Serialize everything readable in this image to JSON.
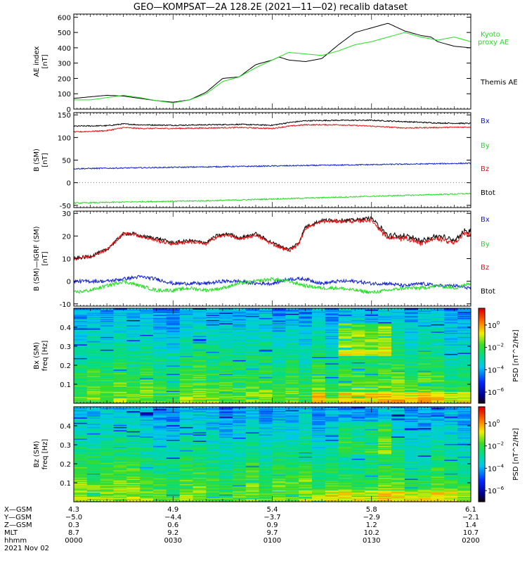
{
  "title": "GEO—KOMPSAT—2A 128.2E (2021—11—02) recalib dataset",
  "colors": {
    "black": "#000000",
    "green": "#22dd22",
    "red": "#e01010",
    "blue": "#1020cc"
  },
  "chart_data": [
    {
      "type": "line",
      "panel": "ae",
      "ylabel_lines": [
        "AE index",
        "[nT]"
      ],
      "ylim": [
        0,
        620
      ],
      "yticks": [
        0,
        100,
        200,
        300,
        400,
        500,
        600
      ],
      "xlim_minutes": [
        0,
        120
      ],
      "legend": [
        {
          "text": "Kyoto",
          "color": "green"
        },
        {
          "text": "proxy AE",
          "color": "green"
        },
        {
          "text": "Themis AE",
          "color": "black"
        }
      ],
      "series": [
        {
          "name": "Themis AE",
          "color": "black",
          "x": [
            0,
            5,
            10,
            15,
            20,
            25,
            30,
            35,
            40,
            45,
            50,
            55,
            60,
            62,
            65,
            70,
            75,
            80,
            85,
            90,
            95,
            100,
            105,
            108,
            110,
            115,
            120
          ],
          "y": [
            70,
            80,
            90,
            85,
            70,
            55,
            45,
            60,
            110,
            200,
            210,
            290,
            320,
            340,
            320,
            310,
            330,
            420,
            500,
            530,
            560,
            510,
            480,
            470,
            440,
            410,
            400
          ]
        },
        {
          "name": "Kyoto proxy AE",
          "color": "green",
          "x": [
            0,
            5,
            10,
            15,
            20,
            25,
            30,
            35,
            40,
            45,
            50,
            55,
            60,
            65,
            70,
            75,
            80,
            85,
            90,
            95,
            100,
            105,
            110,
            115,
            120
          ],
          "y": [
            60,
            60,
            75,
            90,
            75,
            55,
            40,
            60,
            100,
            180,
            210,
            270,
            320,
            370,
            360,
            350,
            380,
            420,
            440,
            470,
            500,
            470,
            450,
            470,
            440
          ]
        }
      ]
    },
    {
      "type": "line",
      "panel": "b",
      "ylabel_lines": [
        "B (SM)",
        "[nT]"
      ],
      "ylim": [
        -55,
        155
      ],
      "yticks": [
        -50,
        0,
        50,
        100,
        150
      ],
      "legend": [
        {
          "text": "Bx",
          "color": "blue"
        },
        {
          "text": "By",
          "color": "green"
        },
        {
          "text": "Bz",
          "color": "red"
        },
        {
          "text": "Btot",
          "color": "black"
        }
      ],
      "series": [
        {
          "name": "Btot",
          "color": "black",
          "x": [
            0,
            10,
            15,
            20,
            30,
            40,
            50,
            60,
            65,
            70,
            80,
            90,
            100,
            110,
            120
          ],
          "y": [
            125,
            126,
            130,
            128,
            127,
            128,
            129,
            127,
            133,
            137,
            138,
            138,
            135,
            132,
            131
          ]
        },
        {
          "name": "Bz",
          "color": "red",
          "x": [
            0,
            10,
            15,
            20,
            30,
            40,
            50,
            60,
            65,
            70,
            80,
            90,
            100,
            110,
            120
          ],
          "y": [
            112,
            115,
            122,
            120,
            120,
            121,
            122,
            120,
            125,
            128,
            128,
            125,
            121,
            122,
            123
          ]
        },
        {
          "name": "Bx",
          "color": "blue",
          "x": [
            0,
            20,
            40,
            60,
            80,
            100,
            120
          ],
          "y": [
            31,
            33,
            35,
            37,
            39,
            41,
            43
          ]
        },
        {
          "name": "By",
          "color": "green",
          "x": [
            0,
            20,
            40,
            60,
            80,
            100,
            120
          ],
          "y": [
            -45,
            -42,
            -40,
            -36,
            -32,
            -28,
            -24
          ]
        }
      ]
    },
    {
      "type": "line",
      "panel": "db",
      "ylabel_lines": [
        "B (SM)—IGRF (SM)",
        "[nT]"
      ],
      "ylim": [
        -11,
        31
      ],
      "yticks": [
        -10,
        0,
        10,
        20,
        30
      ],
      "legend": [
        {
          "text": "Bx",
          "color": "blue"
        },
        {
          "text": "By",
          "color": "green"
        },
        {
          "text": "Bz",
          "color": "red"
        },
        {
          "text": "Btot",
          "color": "black"
        }
      ],
      "series": [
        {
          "name": "Btot",
          "color": "black",
          "x": [
            0,
            5,
            10,
            15,
            18,
            20,
            25,
            30,
            35,
            40,
            43,
            47,
            50,
            55,
            60,
            65,
            68,
            70,
            75,
            80,
            85,
            90,
            95,
            100,
            105,
            110,
            115,
            118,
            120
          ],
          "y": [
            10,
            11,
            14,
            21,
            21,
            20,
            19,
            17,
            18,
            17,
            20,
            21,
            19,
            21,
            17,
            14,
            17,
            24,
            27,
            27,
            27,
            28,
            20,
            20,
            18,
            20,
            18,
            22,
            22
          ]
        },
        {
          "name": "Bz",
          "color": "red",
          "x": [
            0,
            5,
            10,
            15,
            18,
            20,
            25,
            30,
            35,
            40,
            43,
            47,
            50,
            55,
            60,
            65,
            68,
            70,
            75,
            80,
            85,
            90,
            95,
            100,
            105,
            110,
            115,
            118,
            120
          ],
          "y": [
            10,
            11,
            14,
            21,
            21,
            20,
            18,
            16.5,
            17.5,
            16.5,
            19.5,
            20.5,
            18.5,
            20.5,
            16.5,
            13.5,
            16.5,
            23.5,
            26.5,
            26.5,
            26.5,
            27,
            19,
            19,
            17,
            19,
            17,
            21,
            21
          ]
        },
        {
          "name": "Bx",
          "color": "blue",
          "x": [
            0,
            5,
            10,
            15,
            20,
            25,
            30,
            35,
            40,
            45,
            50,
            55,
            60,
            65,
            70,
            75,
            80,
            85,
            90,
            95,
            100,
            105,
            110,
            115,
            120
          ],
          "y": [
            0,
            0,
            0,
            1,
            2,
            1,
            -1,
            -1,
            -1,
            0,
            0,
            -1,
            -1,
            1,
            1,
            -1,
            0,
            0,
            -1,
            -1,
            -2,
            -1,
            -2,
            -2,
            -3
          ]
        },
        {
          "name": "By",
          "color": "green",
          "x": [
            0,
            5,
            10,
            15,
            20,
            25,
            30,
            35,
            40,
            45,
            50,
            55,
            60,
            65,
            70,
            75,
            80,
            85,
            90,
            95,
            100,
            105,
            110,
            115,
            120
          ],
          "y": [
            -5,
            -4,
            -2,
            0,
            -2,
            -4,
            -4,
            -3,
            -4,
            -3,
            -1,
            0,
            1,
            0,
            -2,
            -3,
            -3,
            -4,
            -5,
            -4,
            -3,
            -3,
            -2,
            -3,
            -1
          ]
        }
      ]
    },
    {
      "type": "heatmap",
      "panel": "sx",
      "ylabel_lines": [
        "Bx (SM)",
        "freq [Hz]"
      ],
      "ylim": [
        0,
        0.5
      ],
      "yticks": [
        0.1,
        0.2,
        0.3,
        0.4
      ],
      "colorbar_label": "PSD [nT^2/Hz]",
      "colorbar_ticks": [
        {
          "label": "10",
          "exp": "0",
          "value": 0
        },
        {
          "label": "10",
          "exp": "−2",
          "value": -2
        },
        {
          "label": "10",
          "exp": "−4",
          "value": -4
        },
        {
          "label": "10",
          "exp": "−6",
          "value": -6
        }
      ],
      "crange": [
        -7,
        1.5
      ]
    },
    {
      "type": "heatmap",
      "panel": "sz",
      "ylabel_lines": [
        "Bz (SM)",
        "freq [Hz]"
      ],
      "ylim": [
        0,
        0.5
      ],
      "yticks": [
        0.1,
        0.2,
        0.3,
        0.4
      ],
      "colorbar_label": "PSD [nT^2/Hz]",
      "colorbar_ticks": [
        {
          "label": "10",
          "exp": "0",
          "value": 0
        },
        {
          "label": "10",
          "exp": "−2",
          "value": -2
        },
        {
          "label": "10",
          "exp": "−4",
          "value": -4
        },
        {
          "label": "10",
          "exp": "−6",
          "value": -6
        }
      ],
      "crange": [
        -7,
        1.5
      ]
    }
  ],
  "x_axis": {
    "minutes": [
      0,
      30,
      60,
      90,
      120
    ],
    "rows": [
      {
        "label": "X—GSM",
        "values": [
          "4.3",
          "4.9",
          "5.4",
          "5.8",
          "6.1"
        ]
      },
      {
        "label": "Y—GSM",
        "values": [
          "−5.0",
          "−4.4",
          "−3.7",
          "−2.9",
          "−2.1"
        ]
      },
      {
        "label": "Z—GSM",
        "values": [
          "0.3",
          "0.6",
          "0.9",
          "1.2",
          "1.4"
        ]
      },
      {
        "label": "MLT",
        "values": [
          "8.7",
          "9.2",
          "9.7",
          "10.2",
          "10.7"
        ]
      },
      {
        "label": "hhmm",
        "values": [
          "0000",
          "0030",
          "0100",
          "0130",
          "0200"
        ]
      }
    ],
    "date": "2021 Nov 02"
  }
}
